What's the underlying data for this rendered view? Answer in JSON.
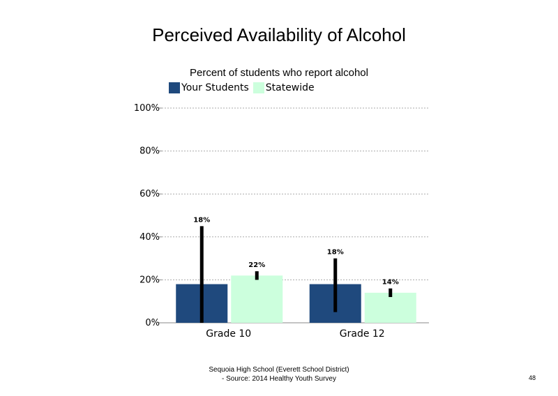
{
  "chart_data": {
    "type": "bar",
    "title": "Perceived Availability of Alcohol",
    "subtitle": "Percent of students  who report alcohol",
    "categories": [
      "Grade 10",
      "Grade 12"
    ],
    "series": [
      {
        "name": "Your Students",
        "color": "#1f497d",
        "values": [
          18,
          18
        ],
        "labels": [
          "18%",
          "18%"
        ],
        "error_low": [
          0,
          5
        ],
        "error_high": [
          45,
          30
        ]
      },
      {
        "name": "Statewide",
        "color": "#ccffdd",
        "values": [
          22,
          14
        ],
        "labels": [
          "22%",
          "14%"
        ],
        "error_low": [
          20,
          12
        ],
        "error_high": [
          24,
          16
        ]
      }
    ],
    "ylim": [
      0,
      100
    ],
    "yticks": [
      "0%",
      "20%",
      "40%",
      "60%",
      "80%",
      "100%"
    ],
    "grid": true,
    "legend": "top"
  },
  "footer": {
    "line1": "Sequoia High School (Everett School District)",
    "line2": "- Source: 2014 Healthy  Youth Survey"
  },
  "page_number": "48"
}
